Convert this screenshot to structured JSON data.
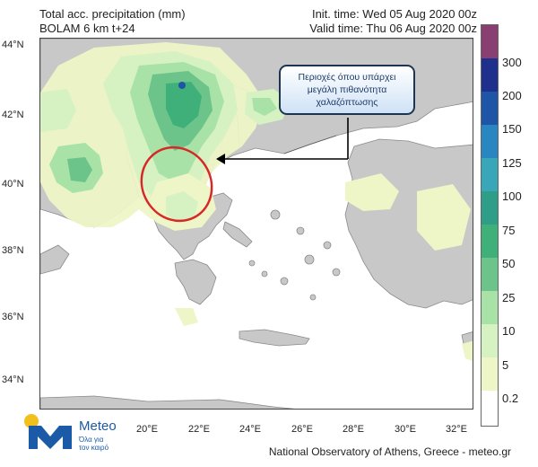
{
  "header": {
    "title_line1": "Total acc. precipitation (mm)",
    "title_line2": "BOLAM 6 km t+24",
    "init_time": "Init. time: Wed 05 Aug 2020 00z",
    "valid_time": "Valid time: Thu 06 Aug 2020 00z"
  },
  "map": {
    "lat_labels": [
      "44°N",
      "42°N",
      "40°N",
      "38°N",
      "36°N",
      "34°N"
    ],
    "lon_labels": [
      "20°E",
      "22°E",
      "24°E",
      "26°E",
      "28°E",
      "30°E",
      "32°E"
    ],
    "land_color": "#c8c8c8",
    "sea_color": "#ffffff",
    "highlight_ring_color": "#d62828"
  },
  "callout": {
    "line1": "Περιοχές όπου υπάρχει",
    "line2": "μεγάλη πιθανότητα",
    "line3": "χαλαζόπτωσης"
  },
  "colorbar": {
    "labels": [
      "300",
      "200",
      "150",
      "125",
      "100",
      "75",
      "50",
      "25",
      "10",
      "5",
      "0.2"
    ],
    "colors": [
      "#8a3f72",
      "#1e2f8c",
      "#1f55a6",
      "#2a86c0",
      "#3aa7b8",
      "#2f9e89",
      "#3fb07a",
      "#6cc48a",
      "#a8e2a7",
      "#d6f2c2",
      "#eef5c6",
      "#ffffff"
    ]
  },
  "branding": {
    "logo_name": "Meteo",
    "logo_tagline_1": "Όλα για",
    "logo_tagline_2": "τον καιρό",
    "credit": "National Observatory of Athens, Greece - meteo.gr"
  }
}
